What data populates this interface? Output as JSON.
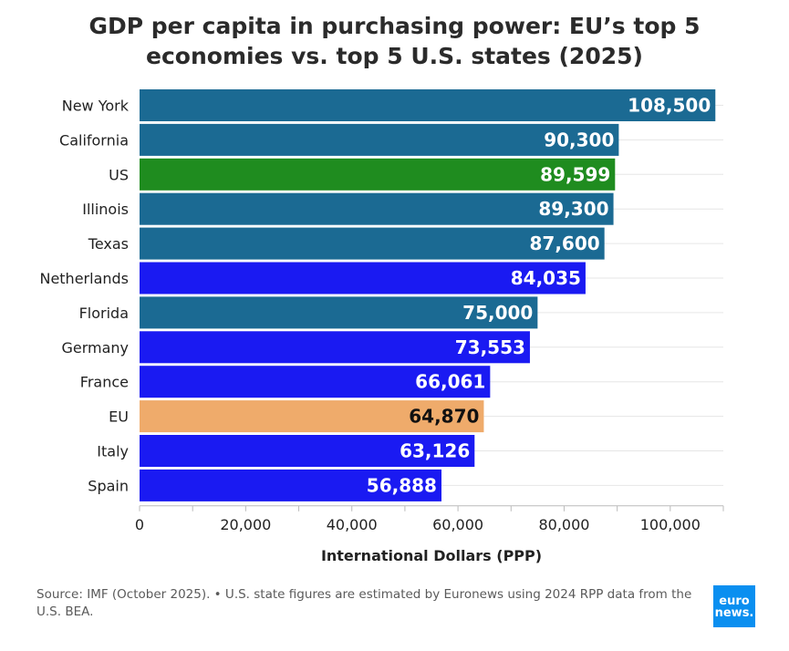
{
  "header": {
    "title_line1": "GDP per capita in purchasing power: EU’s top 5",
    "title_line2": "economies vs. top 5 U.S. states (2025)"
  },
  "chart_data": {
    "type": "bar",
    "orientation": "horizontal",
    "categories": [
      "New York",
      "California",
      "US",
      "Illinois",
      "Texas",
      "Netherlands",
      "Florida",
      "Germany",
      "France",
      "EU",
      "Italy",
      "Spain"
    ],
    "values": [
      108500,
      90300,
      89599,
      89300,
      87600,
      84035,
      75000,
      73553,
      66061,
      64870,
      63126,
      56888
    ],
    "value_labels": [
      "108,500",
      "90,300",
      "89,599",
      "89,300",
      "87,600",
      "84,035",
      "75,000",
      "73,553",
      "66,061",
      "64,870",
      "63,126",
      "56,888"
    ],
    "colors": [
      "#1b6a93",
      "#1b6a93",
      "#1f8c1f",
      "#1b6a93",
      "#1b6a93",
      "#1a1af2",
      "#1b6a93",
      "#1a1af2",
      "#1a1af2",
      "#efab6b",
      "#1a1af2",
      "#1a1af2"
    ],
    "label_colors": [
      "#ffffff",
      "#ffffff",
      "#ffffff",
      "#ffffff",
      "#ffffff",
      "#ffffff",
      "#ffffff",
      "#ffffff",
      "#ffffff",
      "#111111",
      "#ffffff",
      "#ffffff"
    ],
    "xlabel": "International Dollars (PPP)",
    "xlim": [
      0,
      110000
    ],
    "xticks": [
      0,
      20000,
      40000,
      60000,
      80000,
      100000
    ],
    "xtick_labels": [
      "0",
      "20,000",
      "40,000",
      "60,000",
      "80,000",
      "100,000"
    ],
    "grid": true
  },
  "footer": {
    "source": "Source: IMF (October 2025). • U.S. state figures are estimated by Euronews using 2024 RPP data from the U.S. BEA.",
    "logo_line1": "euro",
    "logo_line2": "news."
  }
}
